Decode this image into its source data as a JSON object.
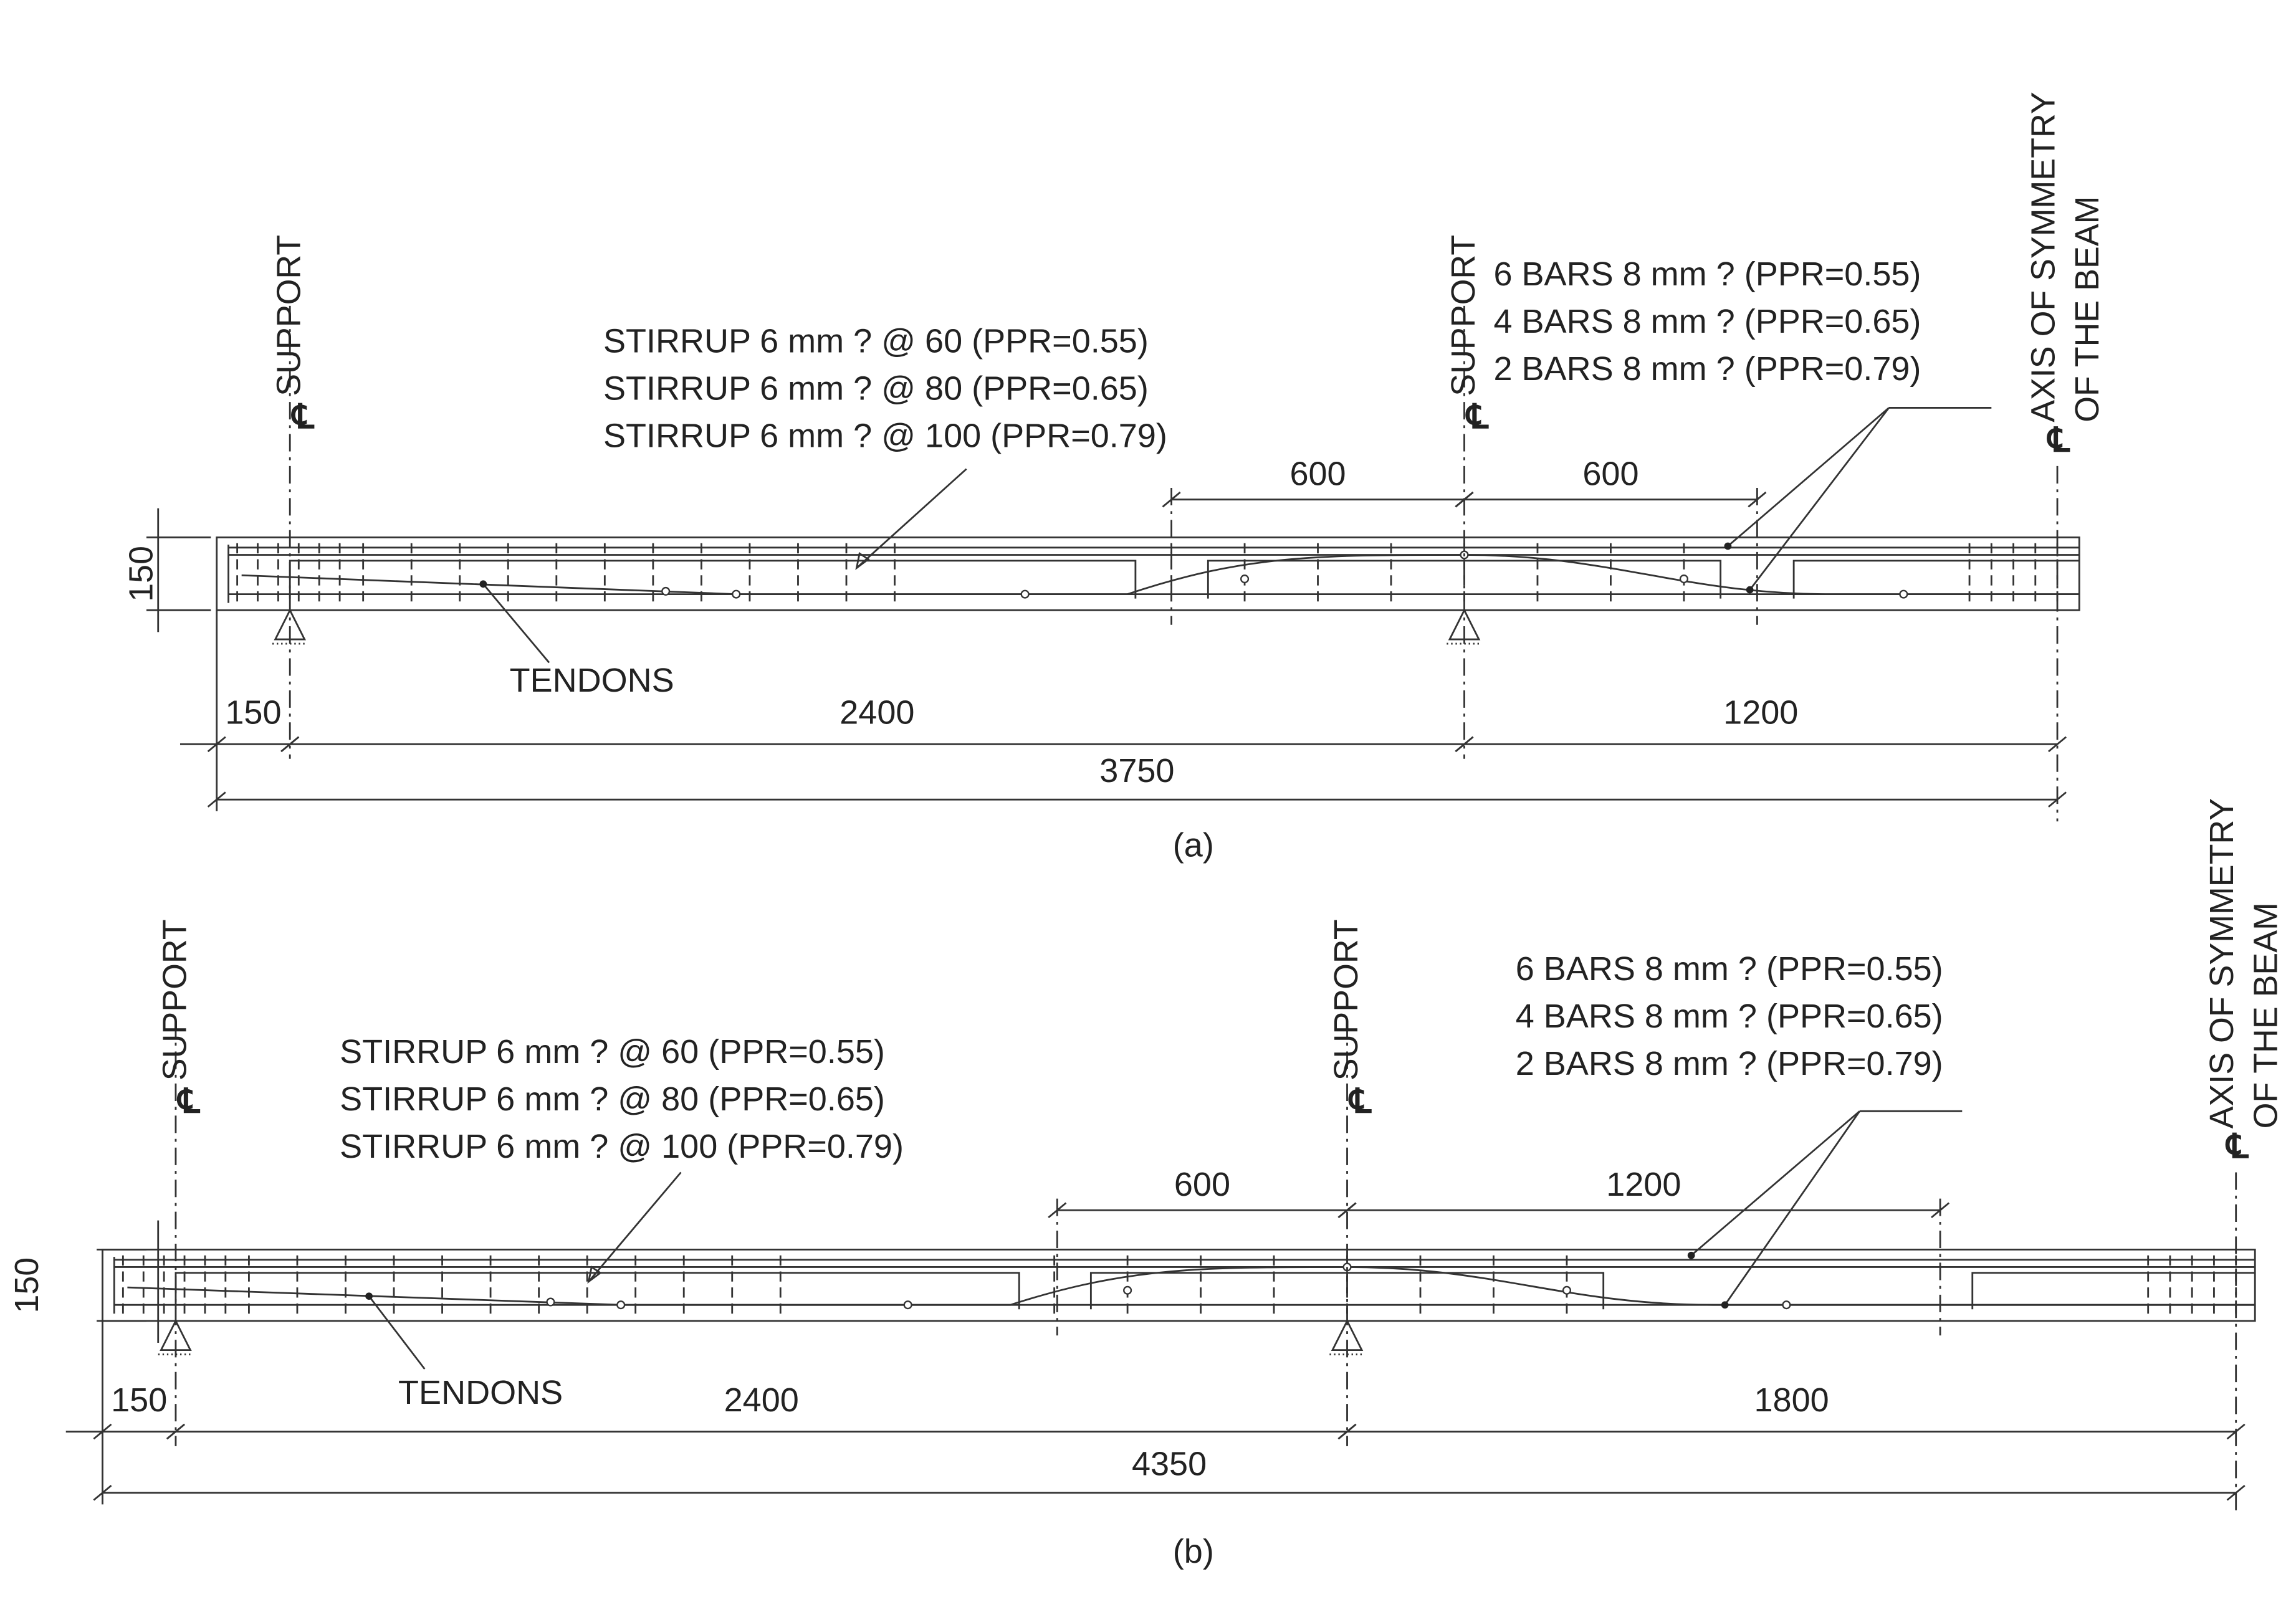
{
  "panels": [
    {
      "caption": "(a)",
      "support_label": "SUPPORT",
      "centerline_symbol": "℄",
      "axis_label": [
        "AXIS OF SYMMETRY",
        "OF THE BEAM"
      ],
      "stirrup_notes": [
        "STIRRUP 6 mm ?  @  60 (PPR=0.55)",
        "STIRRUP 6 mm ?  @  80 (PPR=0.65)",
        "STIRRUP 6 mm ?  @ 100 (PPR=0.79)"
      ],
      "bar_notes": [
        "6 BARS 8 mm ?  (PPR=0.55)",
        "4 BARS 8 mm ?  (PPR=0.65)",
        "2 BARS 8 mm ?  (PPR=0.79)"
      ],
      "tendons_label": "TENDONS",
      "dimensions": {
        "depth": "150",
        "top": [
          "600",
          "600"
        ],
        "bottom": [
          "150",
          "2400",
          "1200"
        ],
        "overall": "3750"
      }
    },
    {
      "caption": "(b)",
      "support_label": "SUPPORT",
      "centerline_symbol": "℄",
      "axis_label": [
        "AXIS OF SYMMETRY",
        "OF THE BEAM"
      ],
      "stirrup_notes": [
        "STIRRUP 6 mm ?  @  60 (PPR=0.55)",
        "STIRRUP 6 mm ?  @  80 (PPR=0.65)",
        "STIRRUP 6 mm ?  @ 100 (PPR=0.79)"
      ],
      "bar_notes": [
        "6 BARS 8 mm ?  (PPR=0.55)",
        "4 BARS 8 mm ?  (PPR=0.65)",
        "2 BARS 8 mm ?  (PPR=0.79)"
      ],
      "tendons_label": "TENDONS",
      "dimensions": {
        "depth": "150",
        "top": [
          "600",
          "1200"
        ],
        "bottom": [
          "150",
          "2400",
          "1800"
        ],
        "overall": "4350"
      }
    }
  ]
}
